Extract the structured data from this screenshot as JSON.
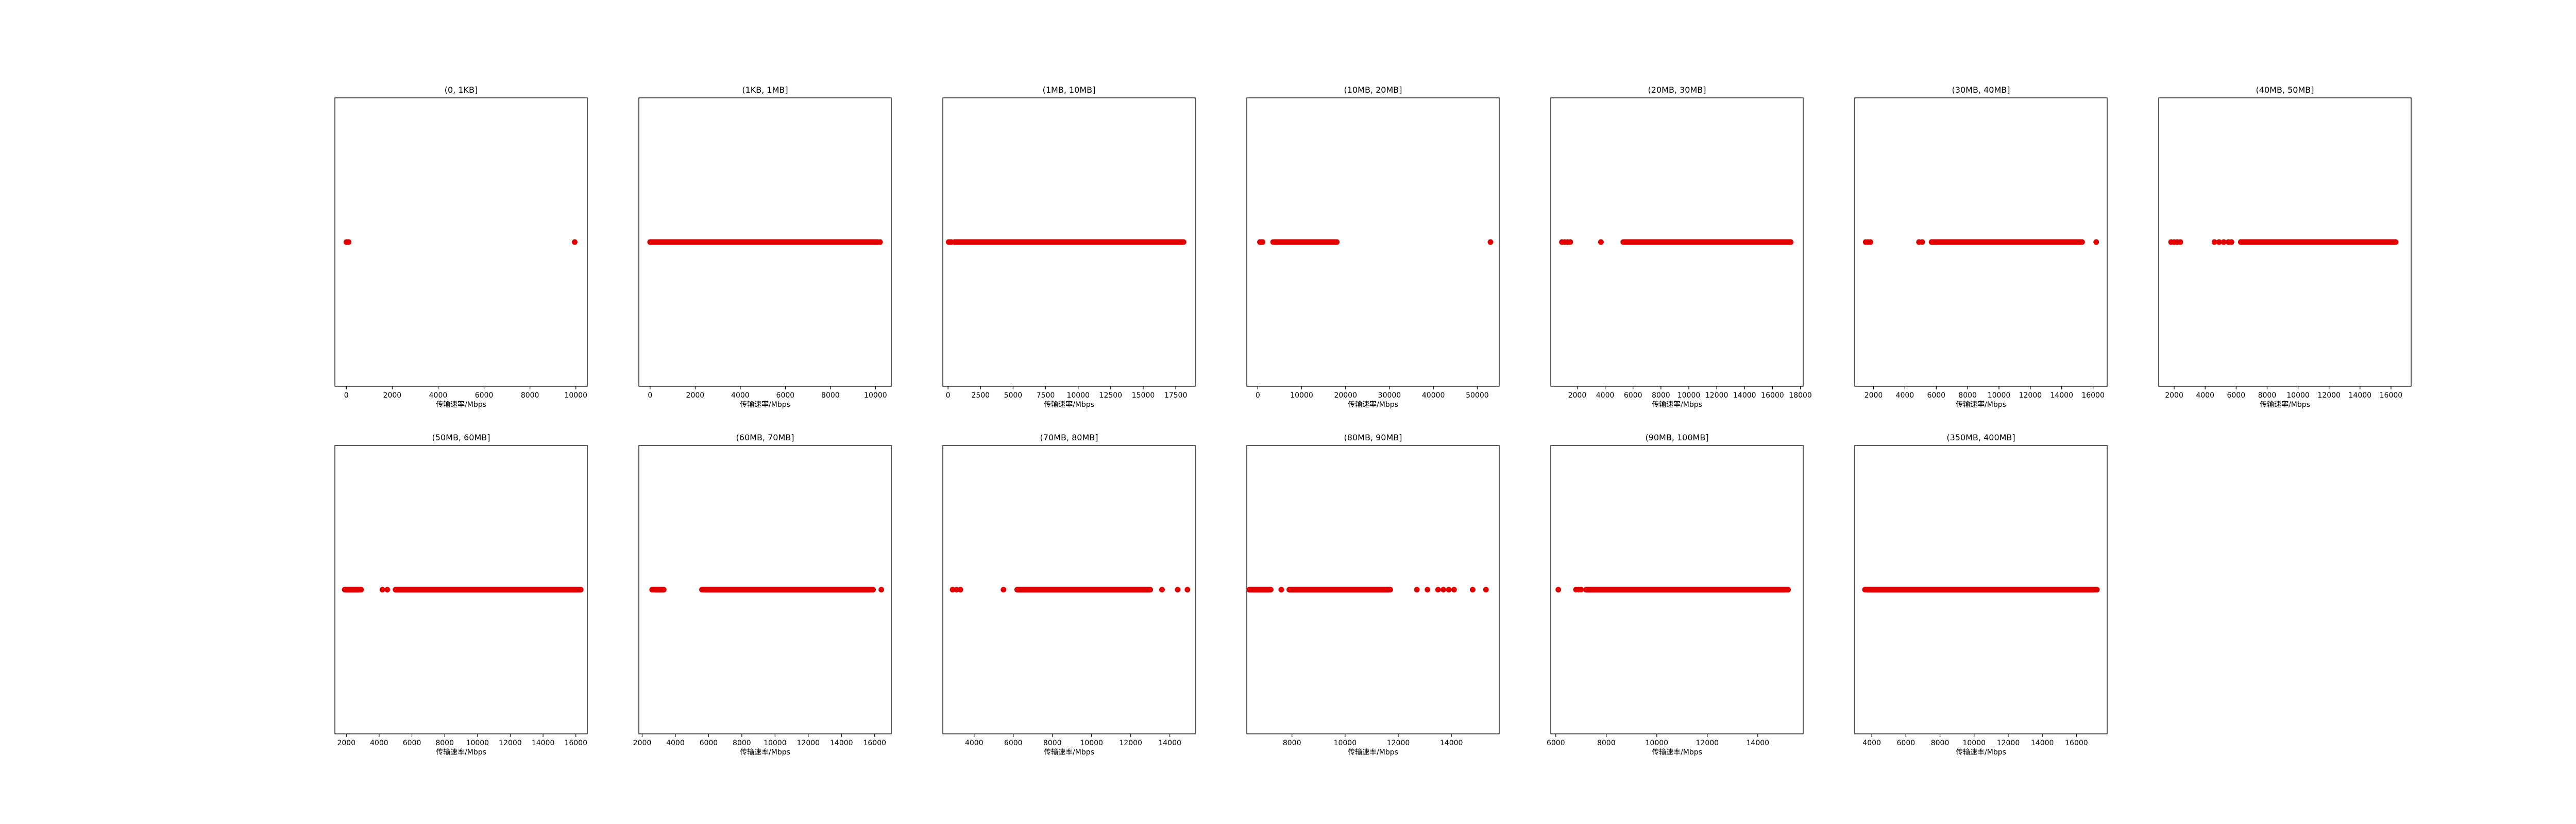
{
  "figure": {
    "background": "#ffffff",
    "marker_color": "#e30000",
    "axis_color": "#000000"
  },
  "chart_data": [
    {
      "type": "scatter",
      "title": "(0, 1KB]",
      "xlabel": "传输速率/Mbps",
      "xlim": [
        -500,
        10500
      ],
      "xticks": [
        0,
        2000,
        4000,
        6000,
        8000,
        10000
      ],
      "y_constant": 0,
      "x": [
        0,
        50,
        100,
        9950
      ]
    },
    {
      "type": "scatter",
      "title": "(1KB, 1MB]",
      "xlabel": "传输速率/Mbps",
      "xlim": [
        -500,
        10700
      ],
      "xticks": [
        0,
        2000,
        4000,
        6000,
        8000,
        10000
      ],
      "y_constant": 0,
      "x_ranges": [
        [
          0,
          10100
        ]
      ],
      "x": [
        10200
      ]
    },
    {
      "type": "scatter",
      "title": "(1MB, 10MB]",
      "xlabel": "传输速率/Mbps",
      "xlim": [
        -400,
        19000
      ],
      "xticks": [
        0,
        2500,
        5000,
        7500,
        10000,
        12500,
        15000,
        17500
      ],
      "y_constant": 0,
      "x_ranges": [
        [
          500,
          18100
        ]
      ],
      "x": [
        50,
        150,
        250
      ]
    },
    {
      "type": "scatter",
      "title": "(10MB, 20MB]",
      "xlabel": "传输速率/Mbps",
      "xlim": [
        -2500,
        55000
      ],
      "xticks": [
        0,
        10000,
        20000,
        30000,
        40000,
        50000
      ],
      "y_constant": 0,
      "x_ranges": [
        [
          3500,
          18000
        ]
      ],
      "x": [
        500,
        800,
        1100,
        53000
      ]
    },
    {
      "type": "scatter",
      "title": "(20MB, 30MB]",
      "xlabel": "传输速率/Mbps",
      "xlim": [
        100,
        18200
      ],
      "xticks": [
        2000,
        4000,
        6000,
        8000,
        10000,
        12000,
        14000,
        16000,
        18000
      ],
      "y_constant": 0,
      "x_ranges": [
        [
          5300,
          17300
        ]
      ],
      "x": [
        900,
        1100,
        1300,
        1500,
        3700
      ]
    },
    {
      "type": "scatter",
      "title": "(30MB, 40MB]",
      "xlabel": "传输速率/Mbps",
      "xlim": [
        800,
        16900
      ],
      "xticks": [
        2000,
        4000,
        6000,
        8000,
        10000,
        12000,
        14000,
        16000
      ],
      "y_constant": 0,
      "x_ranges": [
        [
          5700,
          15300
        ]
      ],
      "x": [
        1500,
        1650,
        1800,
        4900,
        5100,
        16200
      ]
    },
    {
      "type": "scatter",
      "title": "(40MB, 50MB]",
      "xlabel": "传输速率/Mbps",
      "xlim": [
        1000,
        17300
      ],
      "xticks": [
        2000,
        4000,
        6000,
        8000,
        10000,
        12000,
        14000,
        16000
      ],
      "y_constant": 0,
      "x_ranges": [
        [
          6300,
          16300
        ]
      ],
      "x": [
        1800,
        2000,
        2200,
        2400,
        4600,
        4900,
        5200,
        5500,
        5700
      ]
    },
    {
      "type": "scatter",
      "title": "(50MB, 60MB]",
      "xlabel": "传输速率/Mbps",
      "xlim": [
        1300,
        16700
      ],
      "xticks": [
        2000,
        4000,
        6000,
        8000,
        10000,
        12000,
        14000,
        16000
      ],
      "y_constant": 0,
      "x_ranges": [
        [
          1900,
          2900
        ],
        [
          5000,
          16300
        ]
      ],
      "x": [
        4200,
        4500
      ]
    },
    {
      "type": "scatter",
      "title": "(60MB, 70MB]",
      "xlabel": "传输速率/Mbps",
      "xlim": [
        1800,
        17000
      ],
      "xticks": [
        2000,
        4000,
        6000,
        8000,
        10000,
        12000,
        14000,
        16000
      ],
      "y_constant": 0,
      "x_ranges": [
        [
          2600,
          3300
        ],
        [
          5600,
          15900
        ]
      ],
      "x": [
        16400
      ]
    },
    {
      "type": "scatter",
      "title": "(70MB, 80MB]",
      "xlabel": "传输速率/Mbps",
      "xlim": [
        2400,
        15300
      ],
      "xticks": [
        4000,
        6000,
        8000,
        10000,
        12000,
        14000
      ],
      "y_constant": 0,
      "x_ranges": [
        [
          6200,
          13000
        ]
      ],
      "x": [
        2900,
        3100,
        3300,
        5500,
        13600,
        14400,
        14900
      ]
    },
    {
      "type": "scatter",
      "title": "(80MB, 90MB]",
      "xlabel": "传输速率/Mbps",
      "xlim": [
        6300,
        15800
      ],
      "xticks": [
        8000,
        10000,
        12000,
        14000
      ],
      "y_constant": 0,
      "x_ranges": [
        [
          6400,
          7200
        ],
        [
          7900,
          11700
        ]
      ],
      "x": [
        7600,
        12700,
        13100,
        13500,
        13700,
        13900,
        14100,
        14800,
        15300
      ]
    },
    {
      "type": "scatter",
      "title": "(90MB, 100MB]",
      "xlabel": "传输速率/Mbps",
      "xlim": [
        5800,
        15800
      ],
      "xticks": [
        6000,
        8000,
        10000,
        12000,
        14000
      ],
      "y_constant": 0,
      "x_ranges": [
        [
          7200,
          15200
        ]
      ],
      "x": [
        6100,
        6800,
        6900,
        7000
      ]
    },
    {
      "type": "scatter",
      "title": "(350MB, 400MB]",
      "xlabel": "传输速率/Mbps",
      "xlim": [
        3000,
        17800
      ],
      "xticks": [
        4000,
        6000,
        8000,
        10000,
        12000,
        14000,
        16000
      ],
      "y_constant": 0,
      "x_ranges": [
        [
          3600,
          17200
        ]
      ],
      "x": []
    }
  ]
}
